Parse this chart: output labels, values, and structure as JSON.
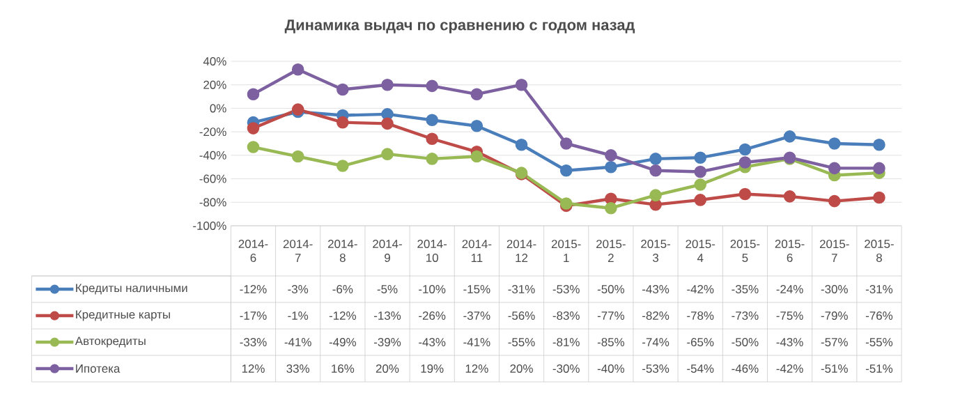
{
  "chart_data": {
    "type": "line",
    "title": "Динамика выдач по сравнению с годом назад",
    "categories": [
      "2014-6",
      "2014-7",
      "2014-8",
      "2014-9",
      "2014-10",
      "2014-11",
      "2014-12",
      "2015-1",
      "2015-2",
      "2015-3",
      "2015-4",
      "2015-5",
      "2015-6",
      "2015-7",
      "2015-8"
    ],
    "series": [
      {
        "name": "Кредиты наличными",
        "color": "#4a7ebb",
        "values": [
          -12,
          -3,
          -6,
          -5,
          -10,
          -15,
          -31,
          -53,
          -50,
          -43,
          -42,
          -35,
          -24,
          -30,
          -31
        ],
        "value_labels": [
          "-12%",
          "-3%",
          "-6%",
          "-5%",
          "-10%",
          "-15%",
          "-31%",
          "-53%",
          "-50%",
          "-43%",
          "-42%",
          "-35%",
          "-24%",
          "-30%",
          "-31%"
        ]
      },
      {
        "name": "Кредитные карты",
        "color": "#be4b48",
        "values": [
          -17,
          -1,
          -12,
          -13,
          -26,
          -37,
          -56,
          -83,
          -77,
          -82,
          -78,
          -73,
          -75,
          -79,
          -76
        ],
        "value_labels": [
          "-17%",
          "-1%",
          "-12%",
          "-13%",
          "-26%",
          "-37%",
          "-56%",
          "-83%",
          "-77%",
          "-82%",
          "-78%",
          "-73%",
          "-75%",
          "-79%",
          "-76%"
        ]
      },
      {
        "name": "Автокредиты",
        "color": "#98b954",
        "values": [
          -33,
          -41,
          -49,
          -39,
          -43,
          -41,
          -55,
          -81,
          -85,
          -74,
          -65,
          -50,
          -43,
          -57,
          -55
        ],
        "value_labels": [
          "-33%",
          "-41%",
          "-49%",
          "-39%",
          "-43%",
          "-41%",
          "-55%",
          "-81%",
          "-85%",
          "-74%",
          "-65%",
          "-50%",
          "-43%",
          "-57%",
          "-55%"
        ]
      },
      {
        "name": "Ипотека",
        "color": "#7d60a0",
        "values": [
          12,
          33,
          16,
          20,
          19,
          12,
          20,
          -30,
          -40,
          -53,
          -54,
          -46,
          -42,
          -51,
          -51
        ],
        "value_labels": [
          "12%",
          "33%",
          "16%",
          "20%",
          "19%",
          "12%",
          "20%",
          "-30%",
          "-40%",
          "-53%",
          "-54%",
          "-46%",
          "-42%",
          "-51%",
          "-51%"
        ]
      }
    ],
    "ylim": [
      -100,
      40
    ],
    "yticks": [
      {
        "value": -100,
        "label": "-100%"
      },
      {
        "value": -80,
        "label": "-80%"
      },
      {
        "value": -60,
        "label": "-60%"
      },
      {
        "value": -40,
        "label": "-40%"
      },
      {
        "value": -20,
        "label": "-20%"
      },
      {
        "value": 0,
        "label": "0%"
      },
      {
        "value": 20,
        "label": "20%"
      },
      {
        "value": 40,
        "label": "40%"
      }
    ],
    "grid": "y",
    "legend": "bottom",
    "marker": "circle",
    "line_style": "solid"
  }
}
